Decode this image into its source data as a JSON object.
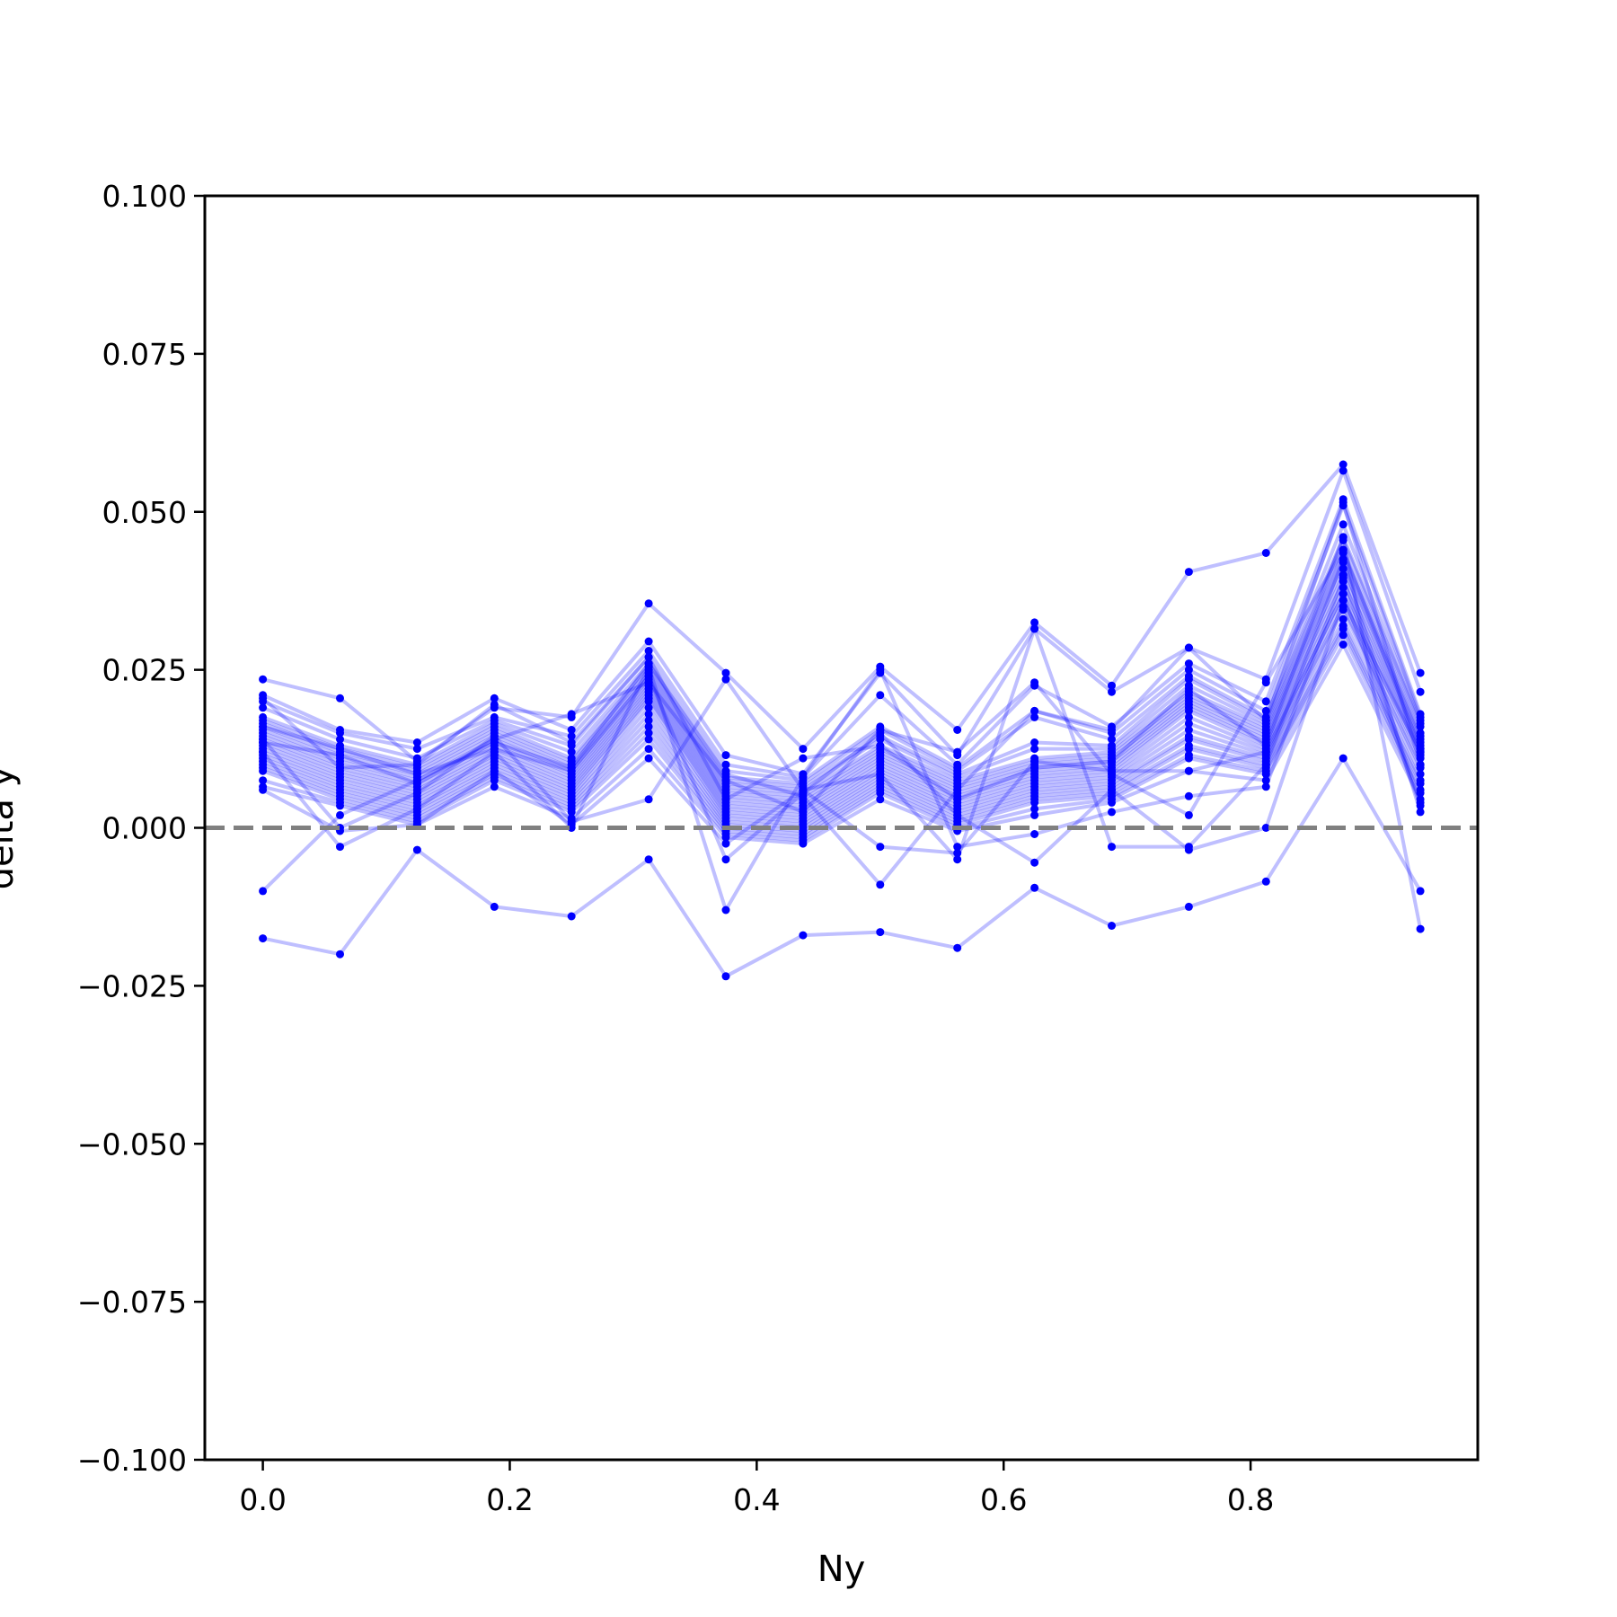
{
  "chart_data": {
    "type": "line",
    "xlabel": "Ny",
    "ylabel": "delta y",
    "xlim": [
      -0.047,
      0.984
    ],
    "ylim": [
      -0.1,
      0.1
    ],
    "grid": false,
    "legend": "none",
    "x_ticks": [
      0.0,
      0.2,
      0.4,
      0.6,
      0.8
    ],
    "x_tick_labels": [
      "0.0",
      "0.2",
      "0.4",
      "0.6",
      "0.8"
    ],
    "y_ticks": [
      -0.1,
      -0.075,
      -0.05,
      -0.025,
      0.0,
      0.025,
      0.05,
      0.075,
      0.1
    ],
    "y_tick_labels": [
      "−0.100",
      "−0.075",
      "−0.050",
      "−0.025",
      "0.000",
      "0.025",
      "0.050",
      "0.075",
      "0.100"
    ],
    "reference_line": {
      "y": 0.0,
      "style": "dashed",
      "color": "#808080"
    },
    "series_color": "#0000ff",
    "x": [
      0.0,
      0.0625,
      0.125,
      0.1875,
      0.25,
      0.3125,
      0.375,
      0.4375,
      0.5,
      0.5625,
      0.625,
      0.6875,
      0.75,
      0.8125,
      0.875,
      0.9375
    ],
    "series": [
      {
        "values": [
          0.0235,
          0.0205,
          0.0105,
          0.019,
          0.0175,
          0.0355,
          0.0245,
          0.0125,
          0.0255,
          0.0155,
          0.0325,
          0.0225,
          0.0405,
          0.0435,
          0.0575,
          0.0245
        ]
      },
      {
        "values": [
          0.021,
          0.0155,
          0.0135,
          0.0205,
          0.0155,
          0.0295,
          0.0115,
          0.0085,
          0.0245,
          0.0115,
          0.0315,
          0.0215,
          0.0285,
          0.0235,
          0.0565,
          0.0215
        ]
      },
      {
        "values": [
          0.02,
          0.015,
          0.0125,
          0.0175,
          0.0145,
          0.028,
          0.01,
          0.008,
          0.021,
          0.01,
          0.0225,
          0.016,
          0.026,
          0.02,
          0.052,
          0.018
        ]
      },
      {
        "values": [
          0.019,
          0.014,
          0.011,
          0.017,
          0.013,
          0.027,
          0.009,
          0.0075,
          0.016,
          0.0095,
          0.0185,
          0.015,
          0.025,
          0.0185,
          0.051,
          0.0175
        ]
      },
      {
        "values": [
          0.0175,
          0.013,
          0.01,
          0.0165,
          0.012,
          0.026,
          0.008,
          0.007,
          0.0155,
          0.009,
          0.0175,
          0.014,
          0.024,
          0.0175,
          0.048,
          0.017
        ]
      },
      {
        "values": [
          0.017,
          0.0125,
          0.0095,
          0.016,
          0.011,
          0.0255,
          0.0075,
          0.0065,
          0.0145,
          0.0085,
          0.0135,
          0.013,
          0.0235,
          0.017,
          0.046,
          0.0165
        ]
      },
      {
        "values": [
          0.0165,
          0.012,
          0.009,
          0.0155,
          0.0105,
          0.025,
          0.007,
          0.006,
          0.014,
          0.008,
          0.0125,
          0.0125,
          0.0225,
          0.0165,
          0.0455,
          0.016
        ]
      },
      {
        "values": [
          0.016,
          0.0115,
          0.0085,
          0.015,
          0.01,
          0.0245,
          0.0065,
          0.0055,
          0.013,
          0.0075,
          0.011,
          0.012,
          0.0215,
          0.016,
          0.044,
          0.015
        ]
      },
      {
        "values": [
          0.0155,
          0.011,
          0.008,
          0.0145,
          0.0095,
          0.024,
          0.006,
          0.005,
          0.0125,
          0.007,
          0.0105,
          0.0115,
          0.021,
          0.0155,
          0.0435,
          0.0145
        ]
      },
      {
        "values": [
          0.015,
          0.0105,
          0.0075,
          0.014,
          0.009,
          0.0235,
          0.0055,
          0.0045,
          0.012,
          0.0065,
          0.01,
          0.011,
          0.0205,
          0.015,
          0.0425,
          0.014
        ]
      },
      {
        "values": [
          0.0145,
          0.01,
          0.007,
          0.0135,
          0.0085,
          0.023,
          0.005,
          0.004,
          0.0115,
          0.006,
          0.0095,
          0.0105,
          0.02,
          0.0145,
          0.042,
          0.0135
        ]
      },
      {
        "values": [
          0.014,
          0.0095,
          0.0065,
          0.013,
          0.008,
          0.0225,
          0.0045,
          0.0035,
          0.011,
          0.0055,
          0.009,
          0.01,
          0.0195,
          0.014,
          0.041,
          0.013
        ]
      },
      {
        "values": [
          0.0135,
          0.009,
          0.006,
          0.0125,
          0.0075,
          0.022,
          0.004,
          0.003,
          0.0105,
          0.005,
          0.0085,
          0.0095,
          0.019,
          0.0135,
          0.04,
          0.0125
        ]
      },
      {
        "values": [
          0.013,
          0.0085,
          0.0055,
          0.012,
          0.007,
          0.0215,
          0.0035,
          0.0025,
          0.01,
          0.0045,
          0.008,
          0.009,
          0.0185,
          0.013,
          0.039,
          0.012
        ]
      },
      {
        "values": [
          0.0125,
          0.008,
          0.005,
          0.0115,
          0.0065,
          0.021,
          0.003,
          0.002,
          0.0095,
          0.004,
          0.0075,
          0.0085,
          0.0175,
          0.0125,
          0.038,
          0.0115
        ]
      },
      {
        "values": [
          0.012,
          0.0075,
          0.0045,
          0.011,
          0.006,
          0.0205,
          0.0025,
          0.0015,
          0.009,
          0.0035,
          0.007,
          0.008,
          0.0165,
          0.012,
          0.037,
          0.011
        ]
      },
      {
        "values": [
          0.0115,
          0.007,
          0.004,
          0.0105,
          0.0055,
          0.02,
          0.002,
          0.001,
          0.0085,
          0.003,
          0.0065,
          0.0075,
          0.0155,
          0.0115,
          0.036,
          0.01
        ]
      },
      {
        "values": [
          0.011,
          0.0065,
          0.0035,
          0.01,
          0.005,
          0.019,
          0.0015,
          0.0005,
          0.008,
          0.0025,
          0.006,
          0.007,
          0.0145,
          0.011,
          0.035,
          0.0095
        ]
      },
      {
        "values": [
          0.0105,
          0.006,
          0.003,
          0.0095,
          0.0045,
          0.018,
          0.001,
          0.0,
          0.0075,
          0.002,
          0.0055,
          0.0065,
          0.014,
          0.0105,
          0.0345,
          0.0085
        ]
      },
      {
        "values": [
          0.01,
          0.0055,
          0.0025,
          0.009,
          0.004,
          0.017,
          0.0005,
          -0.0005,
          0.007,
          0.0015,
          0.005,
          0.006,
          0.013,
          0.01,
          0.033,
          0.0075
        ]
      },
      {
        "values": [
          0.0095,
          0.005,
          0.002,
          0.0085,
          0.0035,
          0.016,
          0.0,
          -0.001,
          0.0065,
          0.001,
          0.0045,
          0.0055,
          0.0125,
          0.0095,
          0.032,
          0.007
        ]
      },
      {
        "values": [
          0.009,
          0.0045,
          0.0015,
          0.008,
          0.003,
          0.015,
          -0.0005,
          -0.0015,
          0.006,
          0.0005,
          0.004,
          0.005,
          0.0115,
          0.009,
          0.0315,
          0.006
        ]
      },
      {
        "values": [
          0.0075,
          0.004,
          0.001,
          0.0075,
          0.0025,
          0.014,
          -0.001,
          -0.002,
          0.0055,
          0.0,
          0.003,
          0.0045,
          0.011,
          0.0085,
          0.0305,
          0.0055
        ]
      },
      {
        "values": [
          0.0065,
          0.0035,
          0.0005,
          0.0065,
          0.0015,
          0.0125,
          -0.0015,
          -0.0025,
          0.0045,
          -0.0005,
          0.002,
          0.004,
          0.009,
          0.0075,
          0.029,
          0.0045
        ]
      },
      {
        "values": [
          0.006,
          -0.0005,
          0.0005,
          0.009,
          0.0005,
          0.011,
          -0.0025,
          0.006,
          -0.003,
          -0.004,
          0.0105,
          0.009,
          0.009,
          0.012,
          0.037,
          0.0035
        ]
      },
      {
        "values": [
          0.014,
          0.0,
          0.0055,
          0.0145,
          0.001,
          0.0045,
          0.0235,
          0.006,
          0.0085,
          -0.005,
          0.0315,
          -0.003,
          -0.003,
          0.01,
          0.0425,
          0.0025
        ]
      },
      {
        "values": [
          0.012,
          -0.003,
          0.003,
          0.012,
          0.0,
          0.0255,
          -0.013,
          0.008,
          0.025,
          -0.003,
          -0.001,
          0.0025,
          0.005,
          0.0065,
          0.0395,
          0.004
        ]
      },
      {
        "values": [
          0.016,
          0.0125,
          0.0085,
          0.0125,
          0.009,
          0.024,
          -0.005,
          0.0055,
          0.015,
          0.002,
          -0.0055,
          0.006,
          -0.0035,
          0.0,
          0.036,
          0.012
        ]
      },
      {
        "values": [
          -0.01,
          0.002,
          0.0075,
          0.0135,
          0.0095,
          0.026,
          0.0085,
          0.005,
          -0.009,
          0.006,
          0.0185,
          0.0155,
          0.0285,
          0.017,
          0.0515,
          0.01
        ]
      },
      {
        "values": [
          0.0135,
          0.0115,
          0.007,
          0.014,
          0.018,
          0.023,
          0.0075,
          0.0025,
          0.0155,
          0.012,
          0.023,
          0.0085,
          0.002,
          0.023,
          0.044,
          0.0125
        ]
      },
      {
        "values": [
          -0.0175,
          -0.02,
          -0.0035,
          -0.0125,
          -0.014,
          -0.005,
          -0.0235,
          -0.017,
          -0.0165,
          -0.019,
          -0.0095,
          -0.0155,
          -0.0125,
          -0.0085,
          0.011,
          -0.01
        ]
      },
      {
        "values": [
          0.0205,
          0.0095,
          0.01,
          0.0195,
          0.0135,
          0.027,
          0.0045,
          0.011,
          0.013,
          0.0045,
          0.0095,
          0.0105,
          0.022,
          0.013,
          0.046,
          -0.016
        ]
      }
    ]
  }
}
